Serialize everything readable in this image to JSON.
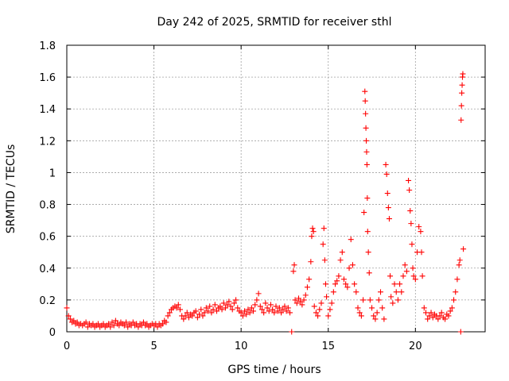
{
  "chart_data": {
    "type": "scatter",
    "title": "Day 242 of 2025, SRMTID for receiver sthl",
    "xlabel": "GPS time / hours",
    "ylabel": "SRMTID / TECUs",
    "xlim": [
      0,
      24
    ],
    "ylim": [
      0,
      1.8
    ],
    "xticks": [
      0,
      5,
      10,
      15,
      20
    ],
    "yticks": [
      0,
      0.2,
      0.4,
      0.6,
      0.8,
      1,
      1.2,
      1.4,
      1.6,
      1.8
    ],
    "grid": true,
    "marker": "+",
    "color": "#ff0000",
    "series": [
      {
        "name": "SRMTID",
        "points": [
          [
            0.0,
            0.15
          ],
          [
            0.1,
            0.1
          ],
          [
            0.2,
            0.08
          ],
          [
            0.3,
            0.06
          ],
          [
            0.4,
            0.07
          ],
          [
            0.5,
            0.05
          ],
          [
            0.6,
            0.06
          ],
          [
            0.7,
            0.04
          ],
          [
            0.8,
            0.05
          ],
          [
            0.9,
            0.04
          ],
          [
            1.0,
            0.05
          ],
          [
            1.1,
            0.06
          ],
          [
            1.2,
            0.03
          ],
          [
            1.3,
            0.05
          ],
          [
            1.4,
            0.04
          ],
          [
            1.5,
            0.05
          ],
          [
            1.6,
            0.03
          ],
          [
            1.7,
            0.04
          ],
          [
            1.8,
            0.05
          ],
          [
            1.9,
            0.03
          ],
          [
            2.0,
            0.04
          ],
          [
            2.1,
            0.05
          ],
          [
            2.2,
            0.03
          ],
          [
            2.3,
            0.04
          ],
          [
            2.4,
            0.05
          ],
          [
            2.5,
            0.03
          ],
          [
            2.6,
            0.06
          ],
          [
            2.7,
            0.04
          ],
          [
            2.8,
            0.07
          ],
          [
            2.9,
            0.05
          ],
          [
            3.0,
            0.04
          ],
          [
            3.1,
            0.06
          ],
          [
            3.2,
            0.05
          ],
          [
            3.3,
            0.04
          ],
          [
            3.4,
            0.06
          ],
          [
            3.5,
            0.03
          ],
          [
            3.6,
            0.05
          ],
          [
            3.7,
            0.04
          ],
          [
            3.8,
            0.06
          ],
          [
            3.9,
            0.04
          ],
          [
            4.0,
            0.05
          ],
          [
            4.1,
            0.03
          ],
          [
            4.2,
            0.05
          ],
          [
            4.3,
            0.04
          ],
          [
            4.4,
            0.06
          ],
          [
            4.5,
            0.04
          ],
          [
            4.6,
            0.05
          ],
          [
            4.7,
            0.03
          ],
          [
            4.8,
            0.04
          ],
          [
            4.9,
            0.05
          ],
          [
            5.0,
            0.04
          ],
          [
            5.1,
            0.05
          ],
          [
            5.2,
            0.03
          ],
          [
            5.3,
            0.05
          ],
          [
            5.4,
            0.04
          ],
          [
            5.5,
            0.05
          ],
          [
            5.6,
            0.07
          ],
          [
            5.7,
            0.06
          ],
          [
            5.8,
            0.1
          ],
          [
            5.9,
            0.12
          ],
          [
            6.0,
            0.14
          ],
          [
            6.1,
            0.15
          ],
          [
            6.2,
            0.16
          ],
          [
            6.3,
            0.15
          ],
          [
            6.4,
            0.17
          ],
          [
            6.5,
            0.14
          ],
          [
            6.6,
            0.1
          ],
          [
            6.7,
            0.08
          ],
          [
            6.8,
            0.1
          ],
          [
            6.9,
            0.12
          ],
          [
            7.0,
            0.09
          ],
          [
            7.1,
            0.11
          ],
          [
            7.2,
            0.1
          ],
          [
            7.3,
            0.12
          ],
          [
            7.4,
            0.13
          ],
          [
            7.5,
            0.09
          ],
          [
            7.6,
            0.11
          ],
          [
            7.7,
            0.14
          ],
          [
            7.8,
            0.1
          ],
          [
            7.9,
            0.12
          ],
          [
            8.0,
            0.15
          ],
          [
            8.1,
            0.13
          ],
          [
            8.2,
            0.16
          ],
          [
            8.3,
            0.12
          ],
          [
            8.4,
            0.14
          ],
          [
            8.5,
            0.17
          ],
          [
            8.6,
            0.13
          ],
          [
            8.7,
            0.15
          ],
          [
            8.8,
            0.16
          ],
          [
            8.9,
            0.14
          ],
          [
            9.0,
            0.18
          ],
          [
            9.1,
            0.15
          ],
          [
            9.2,
            0.17
          ],
          [
            9.3,
            0.19
          ],
          [
            9.4,
            0.16
          ],
          [
            9.5,
            0.14
          ],
          [
            9.6,
            0.18
          ],
          [
            9.7,
            0.2
          ],
          [
            9.8,
            0.15
          ],
          [
            9.9,
            0.13
          ],
          [
            10.0,
            0.12
          ],
          [
            10.1,
            0.1
          ],
          [
            10.2,
            0.13
          ],
          [
            10.3,
            0.11
          ],
          [
            10.4,
            0.14
          ],
          [
            10.5,
            0.12
          ],
          [
            10.6,
            0.15
          ],
          [
            10.7,
            0.13
          ],
          [
            10.8,
            0.17
          ],
          [
            10.9,
            0.2
          ],
          [
            11.0,
            0.24
          ],
          [
            11.1,
            0.16
          ],
          [
            11.2,
            0.14
          ],
          [
            11.3,
            0.12
          ],
          [
            11.4,
            0.18
          ],
          [
            11.5,
            0.15
          ],
          [
            11.6,
            0.13
          ],
          [
            11.7,
            0.17
          ],
          [
            11.8,
            0.14
          ],
          [
            11.9,
            0.12
          ],
          [
            12.0,
            0.16
          ],
          [
            12.1,
            0.13
          ],
          [
            12.2,
            0.15
          ],
          [
            12.3,
            0.12
          ],
          [
            12.4,
            0.14
          ],
          [
            12.5,
            0.16
          ],
          [
            12.6,
            0.13
          ],
          [
            12.7,
            0.15
          ],
          [
            12.8,
            0.12
          ],
          [
            12.9,
            0.0
          ],
          [
            13.0,
            0.38
          ],
          [
            13.05,
            0.42
          ],
          [
            13.1,
            0.2
          ],
          [
            13.2,
            0.18
          ],
          [
            13.3,
            0.21
          ],
          [
            13.4,
            0.19
          ],
          [
            13.5,
            0.17
          ],
          [
            13.6,
            0.2
          ],
          [
            13.7,
            0.23
          ],
          [
            13.8,
            0.28
          ],
          [
            13.9,
            0.33
          ],
          [
            14.0,
            0.44
          ],
          [
            14.05,
            0.6
          ],
          [
            14.1,
            0.65
          ],
          [
            14.15,
            0.63
          ],
          [
            14.2,
            0.16
          ],
          [
            14.3,
            0.12
          ],
          [
            14.4,
            0.1
          ],
          [
            14.5,
            0.14
          ],
          [
            14.6,
            0.18
          ],
          [
            14.7,
            0.55
          ],
          [
            14.75,
            0.65
          ],
          [
            14.8,
            0.45
          ],
          [
            14.85,
            0.3
          ],
          [
            14.9,
            0.22
          ],
          [
            15.0,
            0.1
          ],
          [
            15.1,
            0.14
          ],
          [
            15.2,
            0.18
          ],
          [
            15.3,
            0.25
          ],
          [
            15.4,
            0.3
          ],
          [
            15.5,
            0.32
          ],
          [
            15.6,
            0.35
          ],
          [
            15.7,
            0.45
          ],
          [
            15.8,
            0.5
          ],
          [
            15.9,
            0.33
          ],
          [
            16.0,
            0.3
          ],
          [
            16.1,
            0.28
          ],
          [
            16.2,
            0.4
          ],
          [
            16.3,
            0.58
          ],
          [
            16.4,
            0.42
          ],
          [
            16.5,
            0.3
          ],
          [
            16.6,
            0.25
          ],
          [
            16.7,
            0.15
          ],
          [
            16.8,
            0.12
          ],
          [
            16.9,
            0.1
          ],
          [
            17.0,
            0.2
          ],
          [
            17.05,
            0.75
          ],
          [
            17.1,
            1.51
          ],
          [
            17.12,
            1.45
          ],
          [
            17.14,
            1.37
          ],
          [
            17.16,
            1.28
          ],
          [
            17.18,
            1.2
          ],
          [
            17.2,
            1.13
          ],
          [
            17.22,
            1.05
          ],
          [
            17.24,
            0.84
          ],
          [
            17.26,
            0.63
          ],
          [
            17.3,
            0.5
          ],
          [
            17.35,
            0.37
          ],
          [
            17.4,
            0.2
          ],
          [
            17.5,
            0.15
          ],
          [
            17.6,
            0.1
          ],
          [
            17.7,
            0.08
          ],
          [
            17.8,
            0.12
          ],
          [
            17.9,
            0.2
          ],
          [
            18.0,
            0.25
          ],
          [
            18.1,
            0.15
          ],
          [
            18.2,
            0.08
          ],
          [
            18.3,
            1.05
          ],
          [
            18.35,
            0.99
          ],
          [
            18.4,
            0.87
          ],
          [
            18.45,
            0.78
          ],
          [
            18.5,
            0.71
          ],
          [
            18.55,
            0.35
          ],
          [
            18.6,
            0.22
          ],
          [
            18.7,
            0.18
          ],
          [
            18.8,
            0.3
          ],
          [
            18.9,
            0.25
          ],
          [
            19.0,
            0.2
          ],
          [
            19.1,
            0.3
          ],
          [
            19.2,
            0.25
          ],
          [
            19.3,
            0.35
          ],
          [
            19.4,
            0.42
          ],
          [
            19.5,
            0.38
          ],
          [
            19.6,
            0.95
          ],
          [
            19.65,
            0.89
          ],
          [
            19.7,
            0.76
          ],
          [
            19.75,
            0.68
          ],
          [
            19.8,
            0.55
          ],
          [
            19.85,
            0.4
          ],
          [
            19.9,
            0.35
          ],
          [
            20.0,
            0.33
          ],
          [
            20.1,
            0.5
          ],
          [
            20.2,
            0.66
          ],
          [
            20.3,
            0.63
          ],
          [
            20.35,
            0.5
          ],
          [
            20.4,
            0.35
          ],
          [
            20.5,
            0.15
          ],
          [
            20.6,
            0.12
          ],
          [
            20.7,
            0.08
          ],
          [
            20.8,
            0.1
          ],
          [
            20.9,
            0.12
          ],
          [
            21.0,
            0.09
          ],
          [
            21.1,
            0.11
          ],
          [
            21.2,
            0.1
          ],
          [
            21.3,
            0.08
          ],
          [
            21.4,
            0.1
          ],
          [
            21.5,
            0.12
          ],
          [
            21.6,
            0.09
          ],
          [
            21.7,
            0.08
          ],
          [
            21.8,
            0.11
          ],
          [
            21.9,
            0.1
          ],
          [
            22.0,
            0.13
          ],
          [
            22.1,
            0.15
          ],
          [
            22.2,
            0.2
          ],
          [
            22.3,
            0.25
          ],
          [
            22.4,
            0.33
          ],
          [
            22.5,
            0.42
          ],
          [
            22.55,
            0.45
          ],
          [
            22.6,
            0.0
          ],
          [
            22.62,
            1.33
          ],
          [
            22.64,
            1.42
          ],
          [
            22.66,
            1.5
          ],
          [
            22.68,
            1.55
          ],
          [
            22.7,
            1.6
          ],
          [
            22.72,
            1.62
          ],
          [
            22.75,
            0.52
          ]
        ]
      }
    ]
  }
}
